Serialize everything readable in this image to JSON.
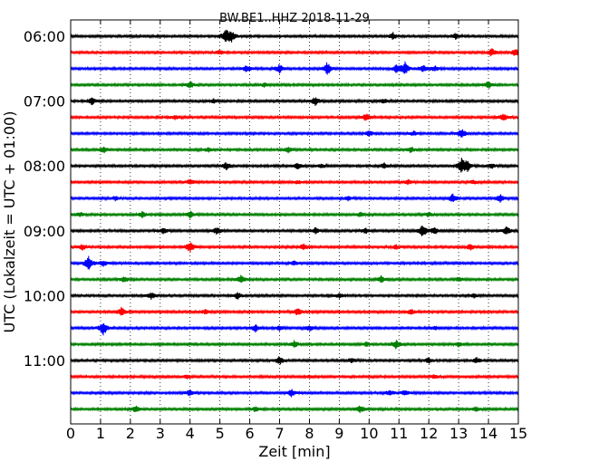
{
  "chart_data": {
    "type": "line",
    "title": "BW.BE1..HHZ 2018-11-29",
    "xlabel": "Zeit  [min]",
    "ylabel": "UTC (Lokalzeit = UTC + 01:00)",
    "xlim": [
      0,
      15
    ],
    "x_ticks": [
      "0",
      "1",
      "2",
      "3",
      "4",
      "5",
      "6",
      "7",
      "8",
      "9",
      "10",
      "11",
      "12",
      "13",
      "14",
      "15"
    ],
    "y_tick_labels": [
      "06:00",
      "07:00",
      "08:00",
      "09:00",
      "10:00",
      "11:00"
    ],
    "y_tick_rows": [
      0,
      4,
      8,
      12,
      16,
      20
    ],
    "grid": "vertical-dotted",
    "line_colors": [
      "#000000",
      "#ff0000",
      "#0000ff",
      "#008000"
    ],
    "traces": [
      {
        "start": "06:00",
        "events": [
          [
            5.2,
            1.0
          ],
          [
            5.4,
            0.6
          ],
          [
            10.8,
            0.5
          ],
          [
            12.9,
            0.4
          ]
        ]
      },
      {
        "start": "06:15",
        "events": [
          [
            14.1,
            0.6
          ],
          [
            14.9,
            0.5
          ],
          [
            5.0,
            0.3
          ]
        ]
      },
      {
        "start": "06:30",
        "events": [
          [
            5.9,
            0.5
          ],
          [
            7.0,
            0.6
          ],
          [
            8.6,
            0.9
          ],
          [
            11.2,
            0.9
          ],
          [
            11.8,
            0.5
          ],
          [
            10.9,
            0.5
          ],
          [
            12.2,
            0.4
          ]
        ]
      },
      {
        "start": "06:45",
        "events": [
          [
            4.0,
            0.5
          ],
          [
            14.0,
            0.5
          ],
          [
            6.5,
            0.3
          ]
        ]
      },
      {
        "start": "07:00",
        "events": [
          [
            0.7,
            0.6
          ],
          [
            8.2,
            0.6
          ],
          [
            4.8,
            0.3
          ],
          [
            10.5,
            0.3
          ]
        ]
      },
      {
        "start": "07:15",
        "events": [
          [
            9.9,
            0.5
          ],
          [
            14.5,
            0.5
          ],
          [
            3.5,
            0.3
          ]
        ]
      },
      {
        "start": "07:30",
        "events": [
          [
            13.1,
            0.7
          ],
          [
            10.0,
            0.4
          ],
          [
            11.5,
            0.3
          ]
        ]
      },
      {
        "start": "07:45",
        "events": [
          [
            1.1,
            0.5
          ],
          [
            7.3,
            0.4
          ],
          [
            11.4,
            0.4
          ],
          [
            4.6,
            0.3
          ]
        ]
      },
      {
        "start": "08:00",
        "events": [
          [
            5.2,
            0.6
          ],
          [
            7.6,
            0.4
          ],
          [
            8.4,
            0.3
          ],
          [
            13.1,
            1.0
          ],
          [
            13.3,
            0.7
          ],
          [
            10.5,
            0.4
          ],
          [
            14.1,
            0.4
          ]
        ]
      },
      {
        "start": "08:15",
        "events": [
          [
            4.0,
            0.4
          ],
          [
            7.6,
            0.3
          ],
          [
            11.3,
            0.4
          ],
          [
            13.5,
            0.3
          ]
        ]
      },
      {
        "start": "08:30",
        "events": [
          [
            12.8,
            0.6
          ],
          [
            14.4,
            0.5
          ],
          [
            1.5,
            0.3
          ],
          [
            9.3,
            0.3
          ]
        ]
      },
      {
        "start": "08:45",
        "events": [
          [
            4.0,
            0.5
          ],
          [
            2.4,
            0.4
          ],
          [
            9.7,
            0.3
          ],
          [
            12.0,
            0.3
          ],
          [
            0.3,
            0.3
          ]
        ]
      },
      {
        "start": "09:00",
        "events": [
          [
            3.1,
            0.4
          ],
          [
            4.9,
            0.5
          ],
          [
            8.2,
            0.4
          ],
          [
            11.8,
            0.9
          ],
          [
            12.2,
            0.5
          ],
          [
            14.6,
            0.6
          ],
          [
            9.9,
            0.4
          ]
        ]
      },
      {
        "start": "09:15",
        "events": [
          [
            0.4,
            0.4
          ],
          [
            4.0,
            0.8
          ],
          [
            7.8,
            0.4
          ],
          [
            13.4,
            0.4
          ],
          [
            10.9,
            0.3
          ]
        ]
      },
      {
        "start": "09:30",
        "events": [
          [
            0.6,
            1.0
          ],
          [
            1.1,
            0.4
          ],
          [
            7.5,
            0.3
          ]
        ]
      },
      {
        "start": "09:45",
        "events": [
          [
            5.7,
            0.6
          ],
          [
            10.4,
            0.5
          ],
          [
            1.8,
            0.4
          ],
          [
            13.0,
            0.3
          ]
        ]
      },
      {
        "start": "10:00",
        "events": [
          [
            2.7,
            0.5
          ],
          [
            5.6,
            0.5
          ],
          [
            9.0,
            0.3
          ],
          [
            13.5,
            0.3
          ]
        ]
      },
      {
        "start": "10:15",
        "events": [
          [
            1.7,
            0.6
          ],
          [
            7.6,
            0.5
          ],
          [
            11.4,
            0.4
          ],
          [
            4.5,
            0.3
          ]
        ]
      },
      {
        "start": "10:30",
        "events": [
          [
            1.1,
            1.0
          ],
          [
            6.2,
            0.5
          ],
          [
            8.0,
            0.4
          ],
          [
            7.0,
            0.3
          ],
          [
            12.2,
            0.3
          ]
        ]
      },
      {
        "start": "10:45",
        "events": [
          [
            7.5,
            0.5
          ],
          [
            10.9,
            0.6
          ],
          [
            9.9,
            0.3
          ],
          [
            13.0,
            0.3
          ]
        ]
      },
      {
        "start": "11:00",
        "events": [
          [
            7.0,
            0.6
          ],
          [
            12.0,
            0.4
          ],
          [
            13.6,
            0.4
          ],
          [
            9.4,
            0.3
          ]
        ]
      },
      {
        "start": "11:15",
        "events": [
          [
            3.9,
            0.3
          ],
          [
            12.2,
            0.3
          ],
          [
            8.0,
            0.2
          ]
        ]
      },
      {
        "start": "11:30",
        "events": [
          [
            4.0,
            0.5
          ],
          [
            7.4,
            0.5
          ],
          [
            10.7,
            0.4
          ],
          [
            11.2,
            0.4
          ]
        ]
      },
      {
        "start": "11:45",
        "events": [
          [
            2.2,
            0.5
          ],
          [
            6.2,
            0.4
          ],
          [
            9.7,
            0.5
          ],
          [
            13.6,
            0.3
          ]
        ]
      }
    ]
  }
}
